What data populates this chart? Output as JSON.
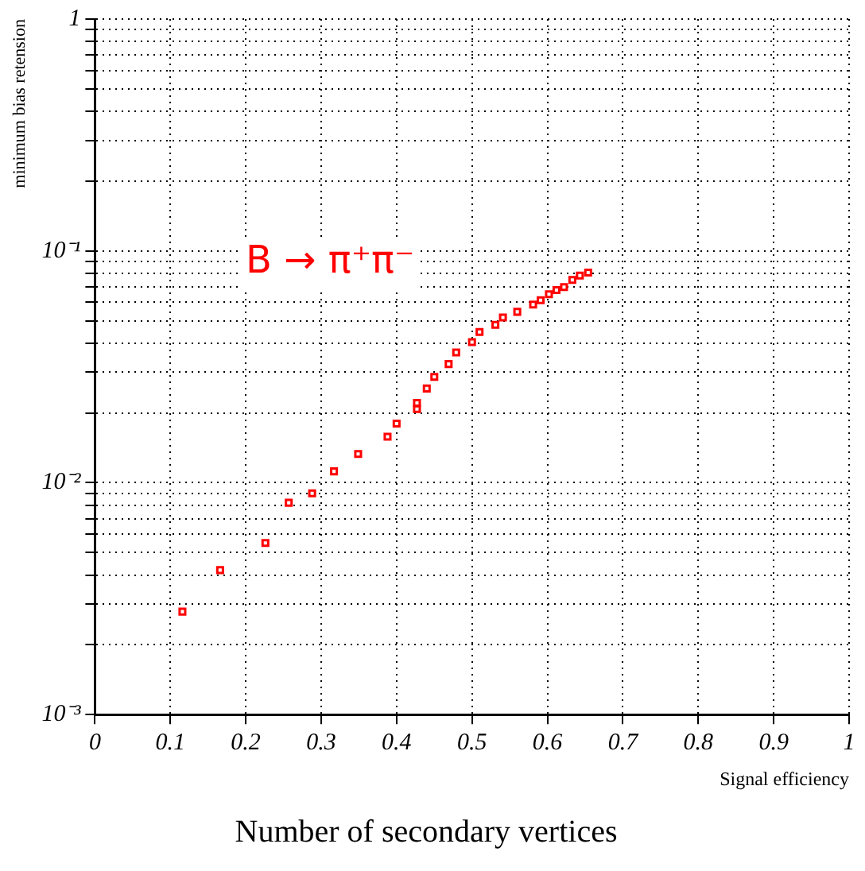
{
  "chart_data": {
    "type": "scatter",
    "title": "Number of secondary vertices",
    "xlabel": "Signal efficiency",
    "ylabel": "minimum bias retension",
    "series": [
      {
        "name": "B → π⁺π⁻",
        "color": "#ff0000",
        "x": [
          0.116,
          0.166,
          0.226,
          0.257,
          0.288,
          0.317,
          0.349,
          0.388,
          0.4,
          0.427,
          0.427,
          0.44,
          0.45,
          0.469,
          0.479,
          0.5,
          0.51,
          0.531,
          0.541,
          0.56,
          0.581,
          0.591,
          0.602,
          0.612,
          0.622,
          0.633,
          0.643,
          0.654
        ],
        "values": [
          0.00278,
          0.0042,
          0.0055,
          0.0082,
          0.009,
          0.0112,
          0.0133,
          0.0158,
          0.018,
          0.0221,
          0.0208,
          0.0255,
          0.0286,
          0.0325,
          0.0365,
          0.0404,
          0.0447,
          0.048,
          0.0516,
          0.0546,
          0.0587,
          0.0613,
          0.065,
          0.0678,
          0.0698,
          0.075,
          0.0783,
          0.0806
        ]
      }
    ],
    "xlim": [
      0,
      1
    ],
    "xticks": [
      0,
      0.1,
      0.2,
      0.3,
      0.4,
      0.5,
      0.6,
      0.7,
      0.8,
      0.9,
      1
    ],
    "ylim": [
      0.001,
      1
    ],
    "yticks": [
      {
        "value": 0.001,
        "label": "10⁻³"
      },
      {
        "value": 0.002,
        "label": null
      },
      {
        "value": 0.003,
        "label": null
      },
      {
        "value": 0.004,
        "label": null
      },
      {
        "value": 0.005,
        "label": null
      },
      {
        "value": 0.006,
        "label": null
      },
      {
        "value": 0.007,
        "label": null
      },
      {
        "value": 0.008,
        "label": null
      },
      {
        "value": 0.009,
        "label": null
      },
      {
        "value": 0.01,
        "label": "10⁻²"
      },
      {
        "value": 0.02,
        "label": null
      },
      {
        "value": 0.03,
        "label": null
      },
      {
        "value": 0.04,
        "label": null
      },
      {
        "value": 0.05,
        "label": null
      },
      {
        "value": 0.06,
        "label": null
      },
      {
        "value": 0.07,
        "label": null
      },
      {
        "value": 0.08,
        "label": null
      },
      {
        "value": 0.09,
        "label": null
      },
      {
        "value": 0.1,
        "label": "10⁻¹"
      },
      {
        "value": 0.2,
        "label": null
      },
      {
        "value": 0.3,
        "label": null
      },
      {
        "value": 0.4,
        "label": null
      },
      {
        "value": 0.5,
        "label": null
      },
      {
        "value": 0.6,
        "label": null
      },
      {
        "value": 0.7,
        "label": null
      },
      {
        "value": 0.8,
        "label": null
      },
      {
        "value": 0.9,
        "label": null
      },
      1
    ],
    "log": "y",
    "grid": true,
    "marker": "square",
    "legend": false
  }
}
